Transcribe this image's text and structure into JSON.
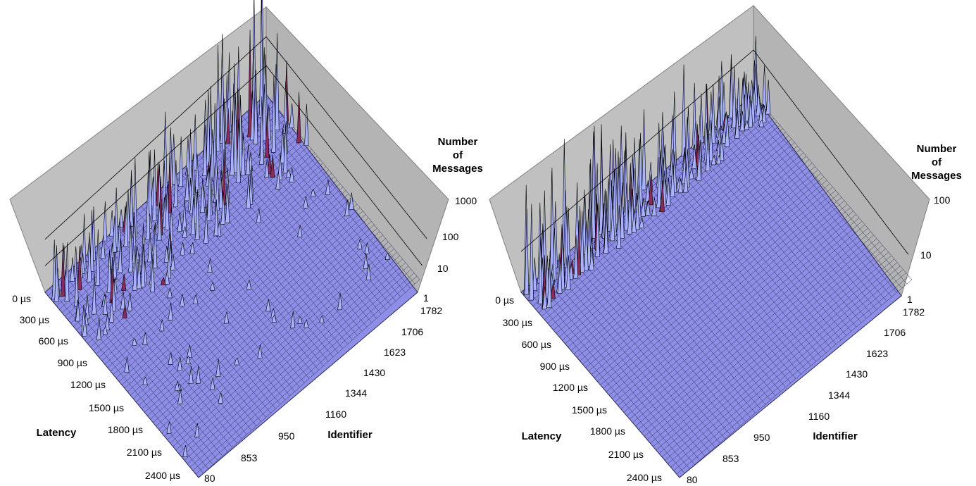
{
  "colors": {
    "background": "#ffffff",
    "wall": "#c0c0c0",
    "wall_edge": "#808080",
    "floor": "#8e8ee6",
    "mesh": "#2a2a55",
    "peak_fill": "#a8b2ff",
    "peak_edge": "#000000",
    "peak_accent": "#8b2b5c"
  },
  "chart_data": [
    {
      "type": "surface3d",
      "x_axis_title": "Identifier",
      "y_axis_title": "Latency",
      "z_axis_title_lines": [
        "Number",
        "of",
        "Messages"
      ],
      "identifier_ticks": [
        "1782",
        "1706",
        "1623",
        "1430",
        "1344",
        "1160",
        "950",
        "853",
        "80"
      ],
      "latency_ticks": [
        "0 µs",
        "300 µs",
        "600 µs",
        "900 µs",
        "1200 µs",
        "1500 µs",
        "1800 µs",
        "2100 µs",
        "2400 µs"
      ],
      "z_ticks": [
        "1",
        "10",
        "100",
        "1000"
      ],
      "z_scale": "log",
      "z_range": [
        1,
        1000
      ],
      "grid": true,
      "description_of_values": "peaks concentrated at latencies 0–600 µs across all identifiers, heights up to ~1000 messages; scattered smaller peaks up to ~1500 µs"
    },
    {
      "type": "surface3d",
      "x_axis_title": "Identifier",
      "y_axis_title": "Latency",
      "z_axis_title_lines": [
        "Number",
        "of",
        "Messages"
      ],
      "identifier_ticks": [
        "1782",
        "1706",
        "1623",
        "1430",
        "1344",
        "1160",
        "950",
        "853",
        "80"
      ],
      "latency_ticks": [
        "0 µs",
        "300 µs",
        "600 µs",
        "900 µs",
        "1200 µs",
        "1500 µs",
        "1800 µs",
        "2100 µs",
        "2400 µs"
      ],
      "z_ticks": [
        "1",
        "10",
        "100"
      ],
      "z_scale": "log",
      "z_range": [
        1,
        100
      ],
      "grid": true,
      "description_of_values": "peaks confined to latency 0–300 µs across all identifiers, heights up to ~100 messages"
    }
  ]
}
